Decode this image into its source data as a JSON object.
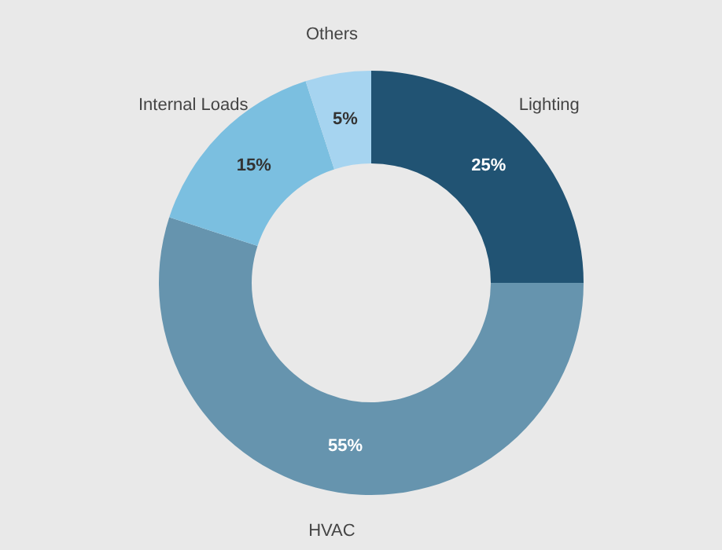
{
  "chart_data": {
    "type": "donut",
    "categories": [
      "Lighting",
      "HVAC",
      "Internal Loads",
      "Others"
    ],
    "values": [
      25,
      55,
      15,
      5
    ],
    "value_labels": [
      "25%",
      "55%",
      "15%",
      "5%"
    ],
    "colors": [
      "#215373",
      "#6694ae",
      "#7bbfe0",
      "#a6d4f0"
    ]
  }
}
